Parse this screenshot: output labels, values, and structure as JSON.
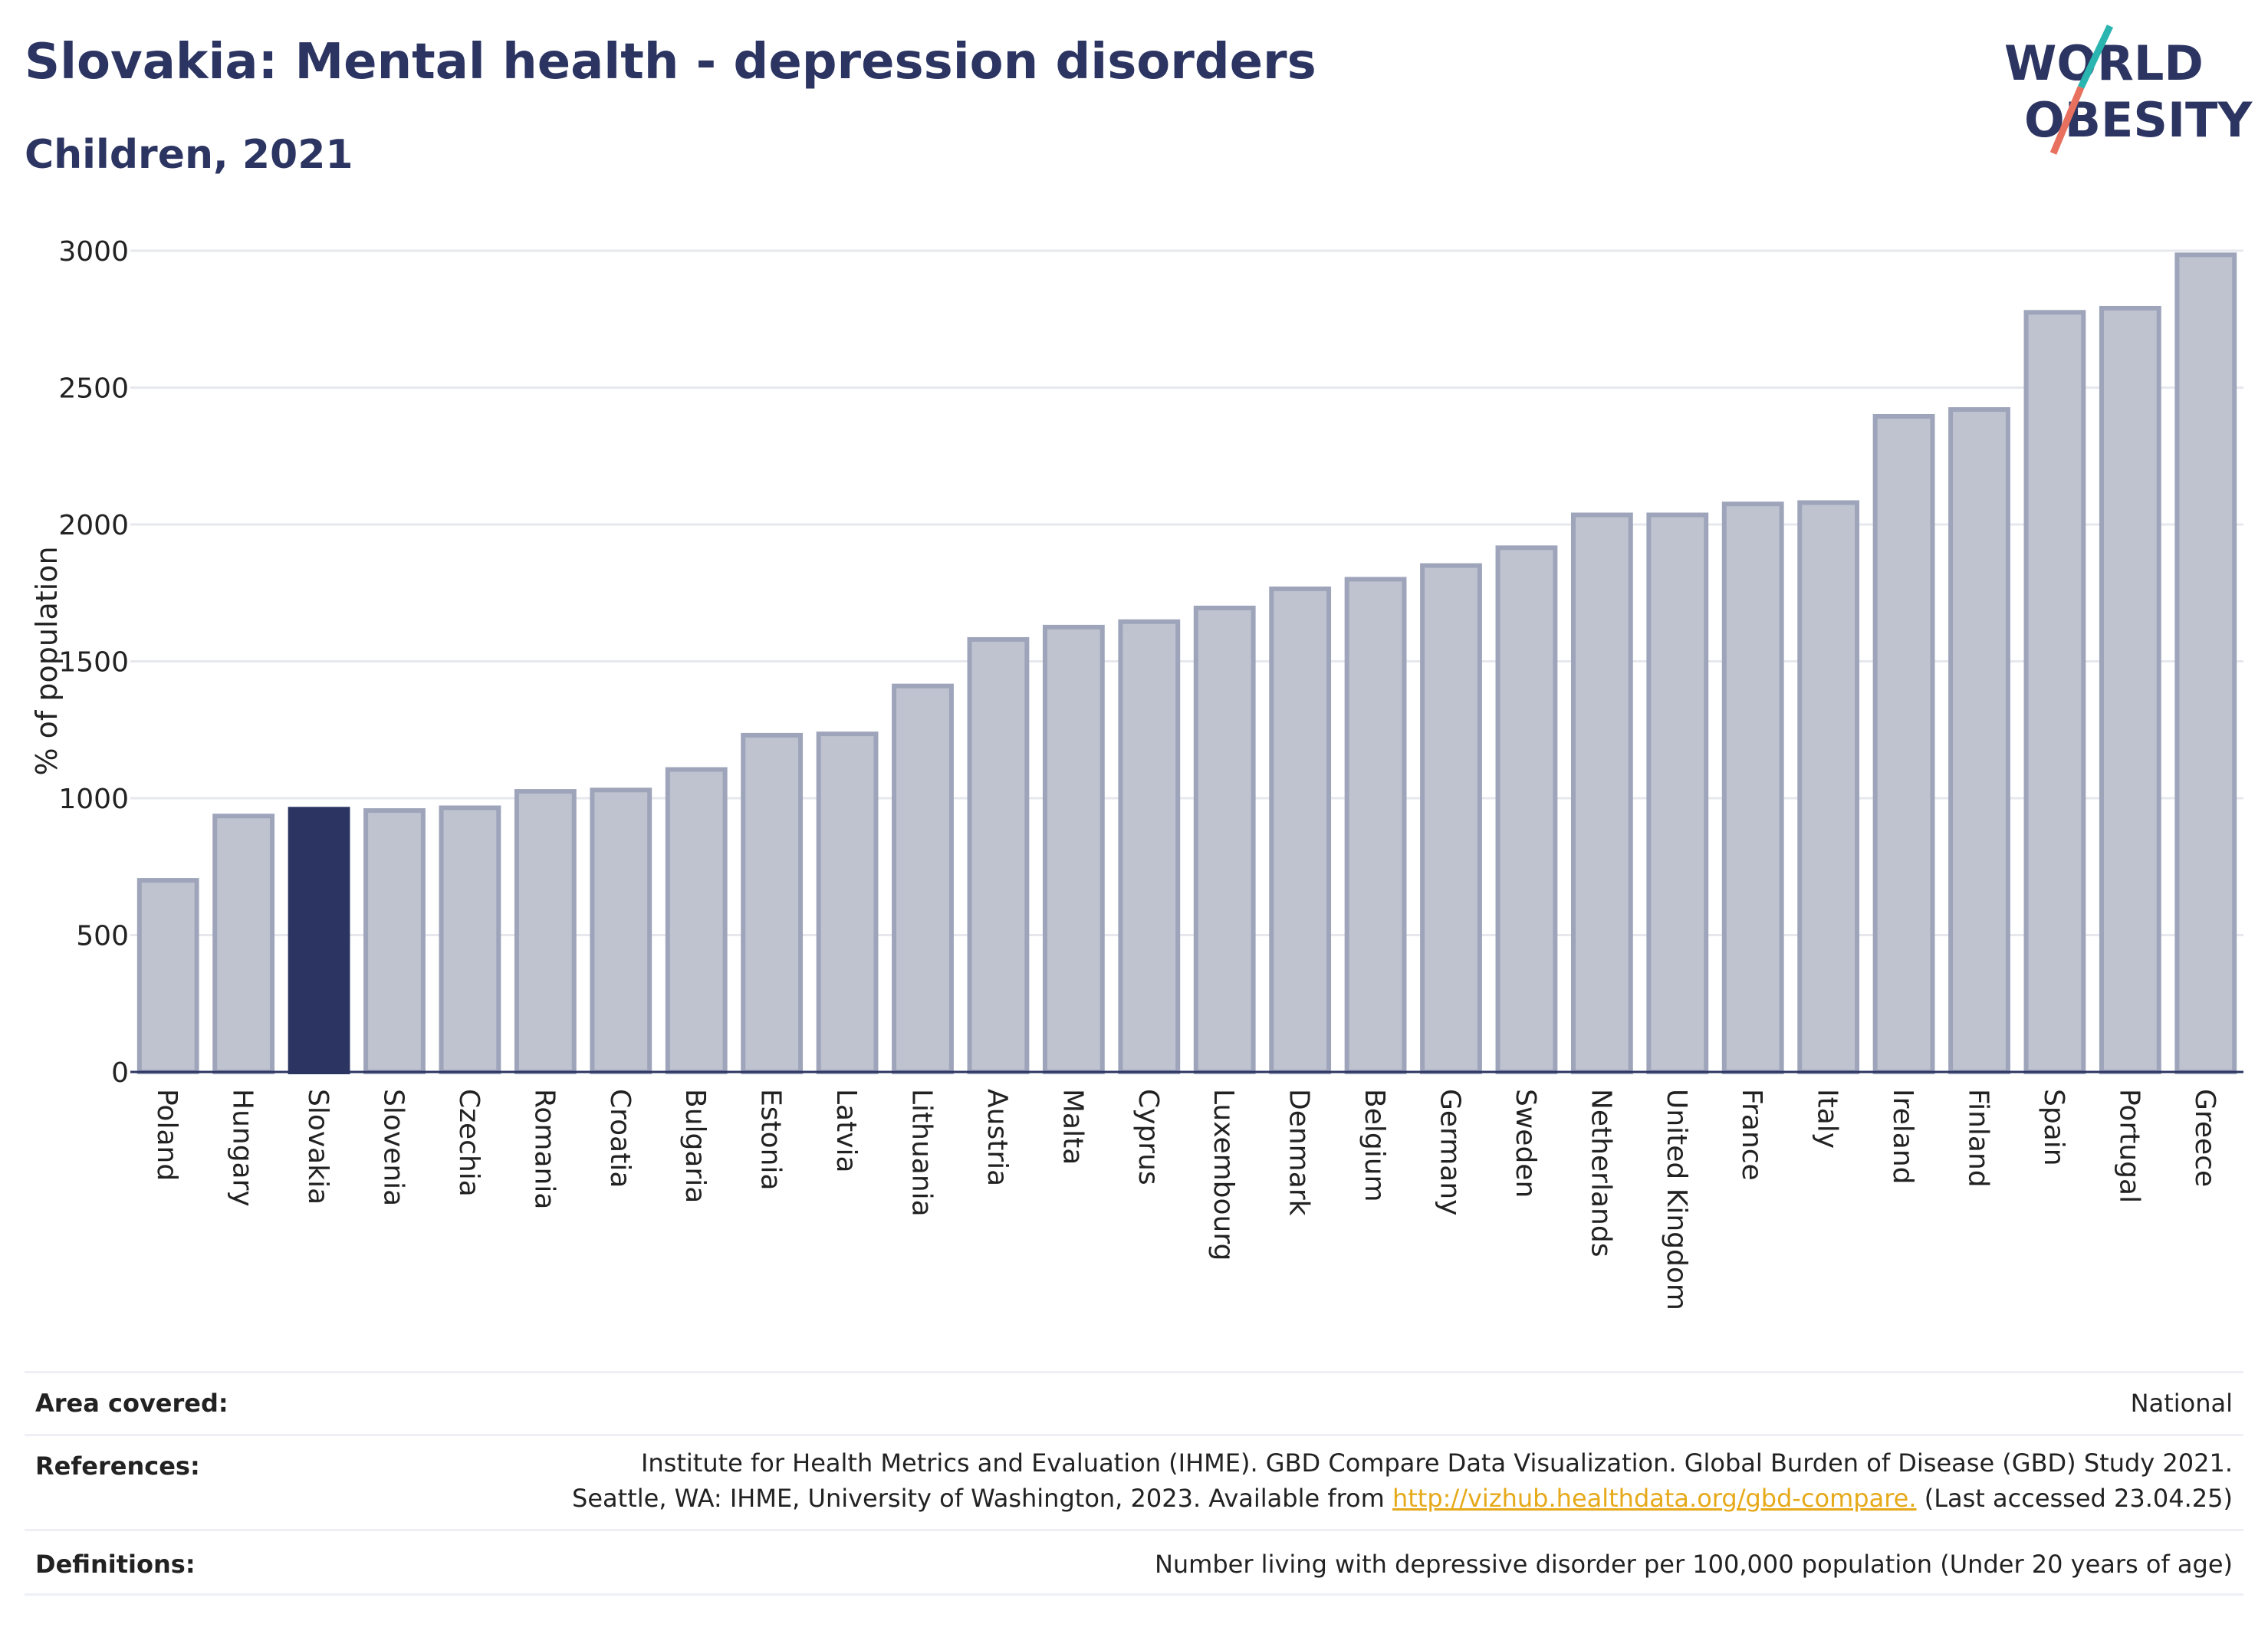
{
  "title": "Slovakia: Mental health - depression disorders",
  "subtitle": "Children, 2021",
  "logo": {
    "line1": "WORLD",
    "line2": "OBESITY"
  },
  "colors": {
    "title": "#2c3562",
    "bar": "#bfc3d0",
    "bar_edge": "#9ea4ba",
    "highlight": "#2c3562",
    "accent_teal": "#2bb5b0",
    "accent_coral": "#e8705e",
    "link": "#e6a919"
  },
  "chart_data": {
    "type": "bar",
    "ylabel": "% of population",
    "ylim": [
      0,
      3000
    ],
    "yticks": [
      0,
      500,
      1000,
      1500,
      2000,
      2500,
      3000
    ],
    "grid": true,
    "highlight": "Slovakia",
    "categories": [
      "Poland",
      "Hungary",
      "Slovakia",
      "Slovenia",
      "Czechia",
      "Romania",
      "Croatia",
      "Bulgaria",
      "Estonia",
      "Latvia",
      "Lithuania",
      "Austria",
      "Malta",
      "Cyprus",
      "Luxembourg",
      "Denmark",
      "Belgium",
      "Germany",
      "Sweden",
      "Netherlands",
      "United Kingdom",
      "France",
      "Italy",
      "Ireland",
      "Finland",
      "Spain",
      "Portugal",
      "Greece"
    ],
    "values": [
      700,
      935,
      960,
      955,
      965,
      1025,
      1030,
      1105,
      1230,
      1235,
      1410,
      1580,
      1625,
      1645,
      1695,
      1765,
      1800,
      1850,
      1915,
      2035,
      2035,
      2075,
      2080,
      2395,
      2420,
      2775,
      2790,
      2985
    ]
  },
  "info": {
    "area": {
      "label": "Area covered:",
      "value": "National"
    },
    "references": {
      "label": "References:",
      "line1": "Institute for Health Metrics and Evaluation (IHME). GBD Compare Data Visualization. Global Burden of Disease (GBD) Study 2021.",
      "line2_pre": "Seattle, WA: IHME, University of Washington, 2023. Available from ",
      "link": "http://vizhub.healthdata.org/gbd-compare.",
      "line2_post": " (Last accessed 23.04.25)"
    },
    "definitions": {
      "label": "Definitions:",
      "value": "Number living with depressive disorder per 100,000 population (Under 20 years of age)"
    }
  }
}
